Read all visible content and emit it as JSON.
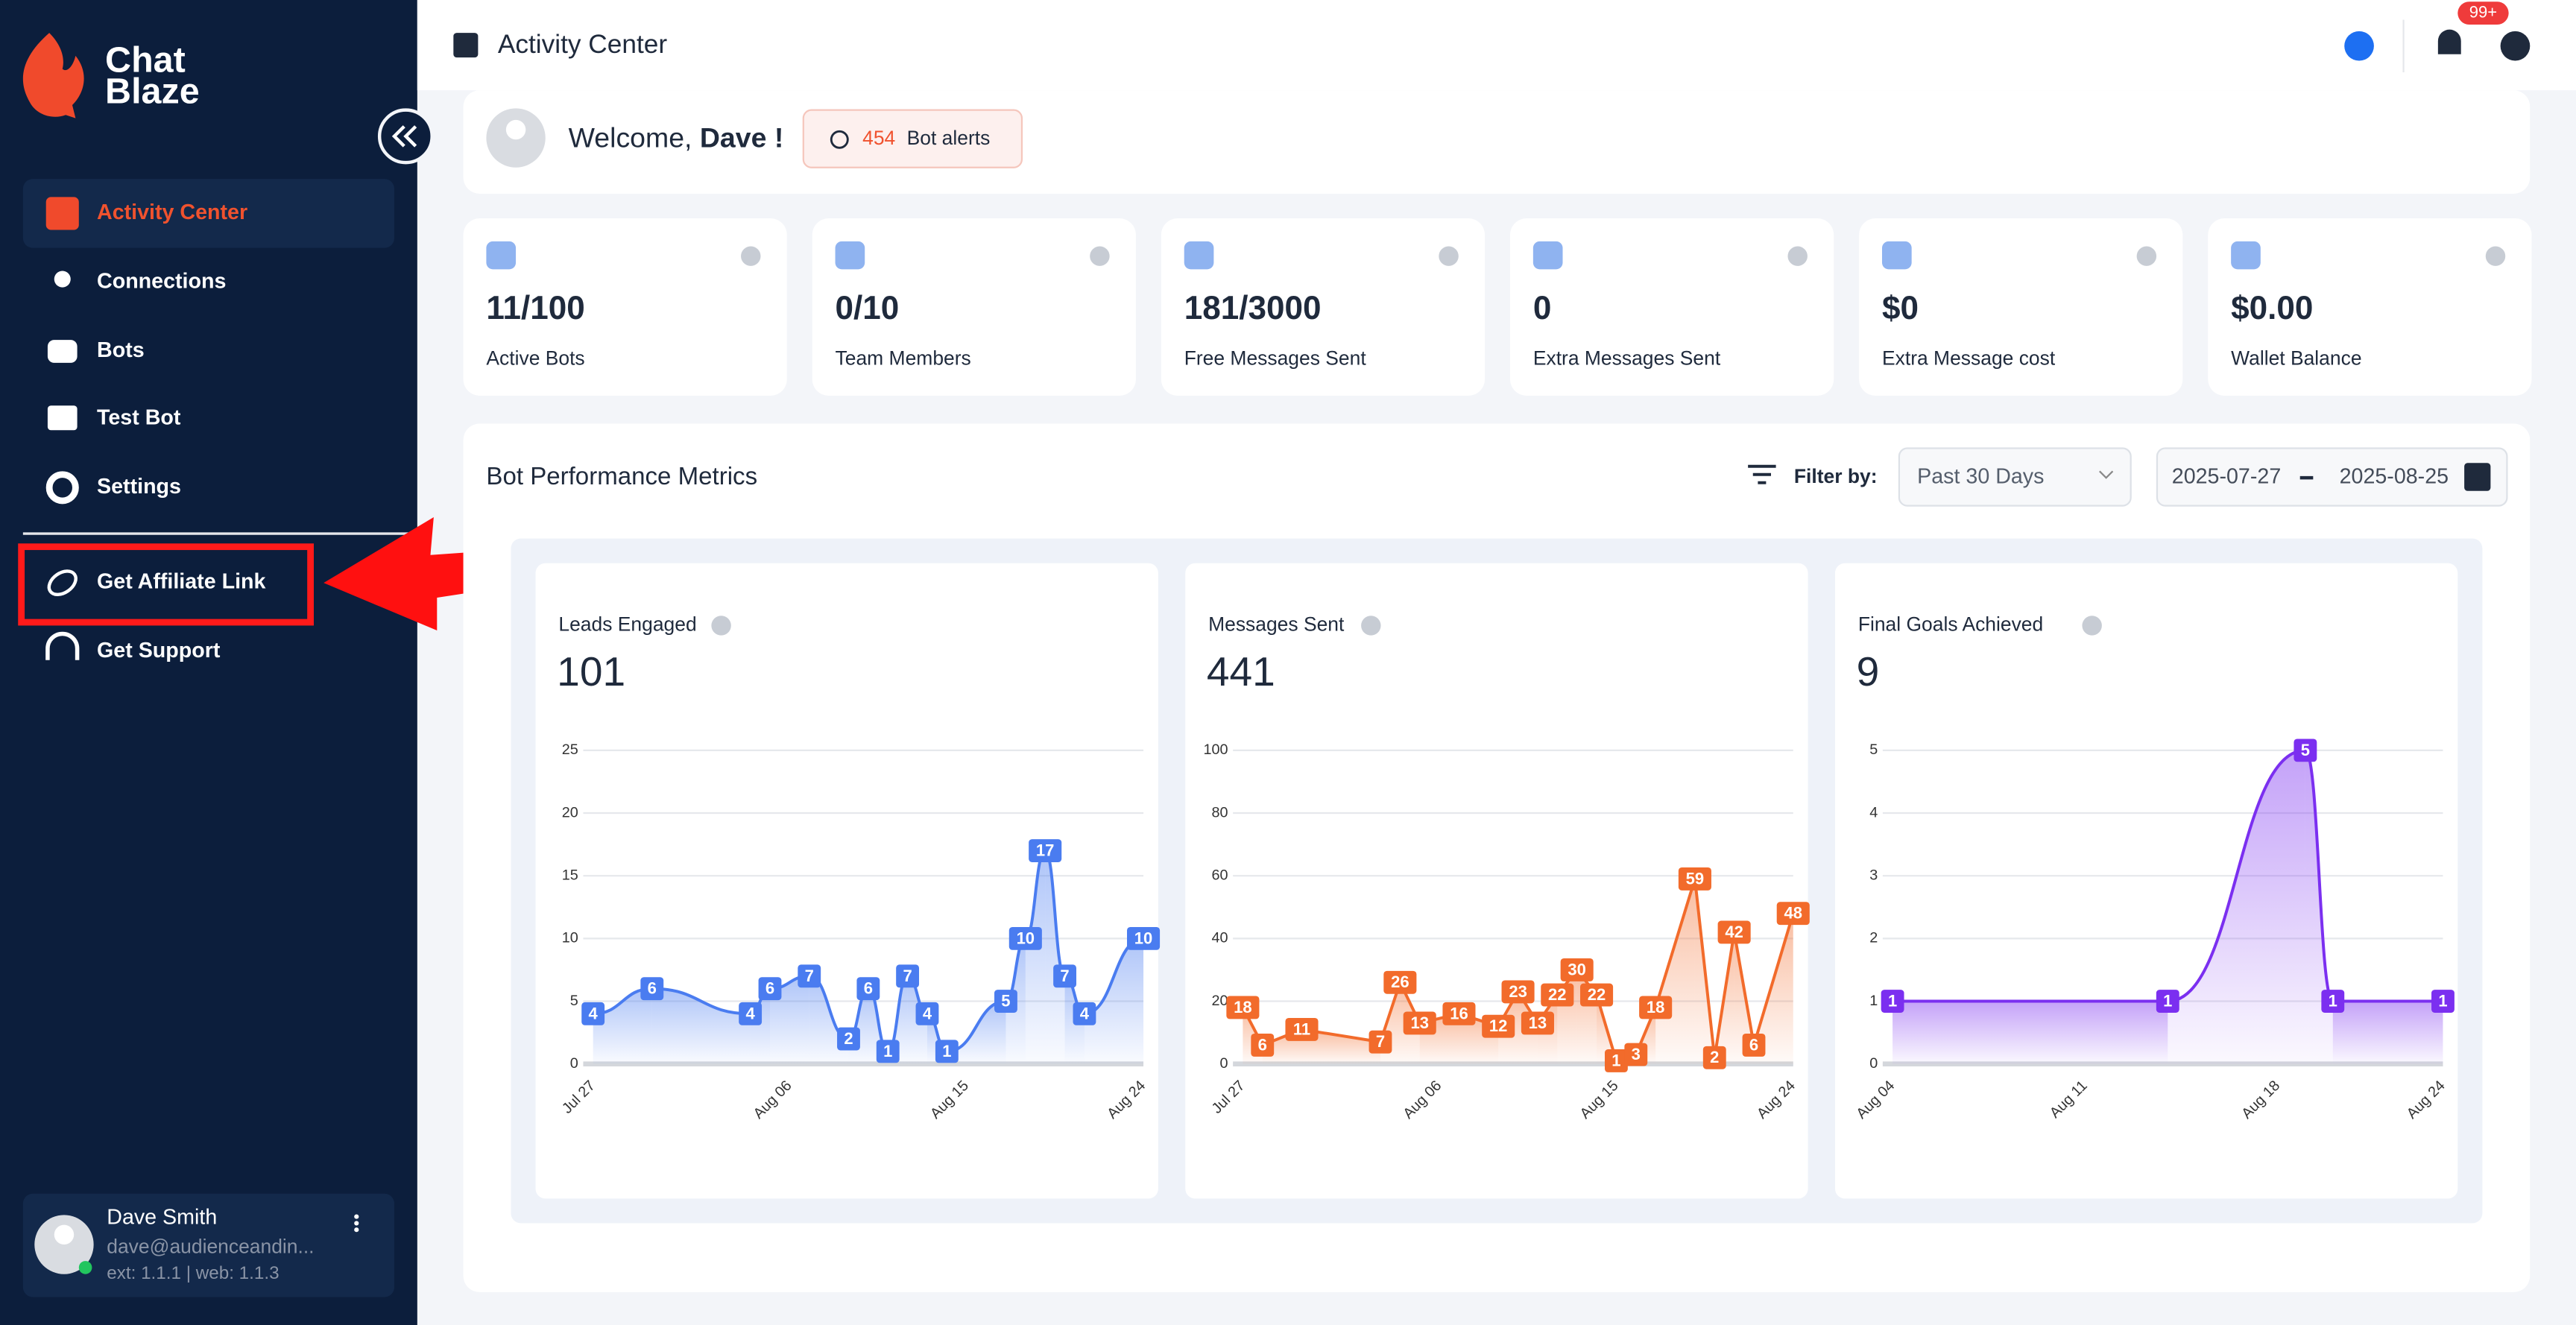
{
  "sidebar": {
    "brand": [
      "Chat",
      "Blaze"
    ],
    "nav": [
      "Activity Center",
      "Connections",
      "Bots",
      "Test Bot",
      "Settings",
      "Get Affiliate Link",
      "Get Support"
    ],
    "user": {
      "name": "Dave Smith",
      "email": "dave@audienceandin...",
      "version": "ext: 1.1.1 | web: 1.1.3"
    }
  },
  "header": {
    "title": "Activity Center",
    "notification_badge": "99+"
  },
  "welcome": {
    "greeting": "Welcome,",
    "name": "Dave !",
    "alert_count": 454,
    "alert_label": "Bot alerts"
  },
  "stats": [
    {
      "value": "11/100",
      "label": "Active Bots"
    },
    {
      "value": "0/10",
      "label": "Team Members"
    },
    {
      "value": "181/3000",
      "label": "Free Messages Sent"
    },
    {
      "value": "0",
      "label": "Extra Messages Sent"
    },
    {
      "value": "$0",
      "label": "Extra Message cost"
    },
    {
      "value": "$0.00",
      "label": "Wallet Balance"
    }
  ],
  "metrics": {
    "title": "Bot Performance Metrics",
    "filter_label": "Filter by:",
    "period": "Past 30 Days",
    "date_from": "2025-07-27",
    "date_to": "2025-08-25"
  },
  "chart_data": [
    {
      "type": "line",
      "title": "Leads Engaged",
      "total": 101,
      "color": "#4a7cf0",
      "smooth": true,
      "categories": [
        "Jul 27",
        null,
        null,
        null,
        null,
        null,
        null,
        null,
        null,
        null,
        "Aug 06",
        null,
        null,
        null,
        null,
        null,
        null,
        null,
        null,
        "Aug 15",
        null,
        null,
        null,
        null,
        null,
        null,
        null,
        null,
        "Aug 24"
      ],
      "values": [
        4,
        null,
        null,
        6,
        null,
        null,
        null,
        null,
        4,
        6,
        null,
        7,
        null,
        2,
        6,
        1,
        7,
        4,
        1,
        null,
        null,
        5,
        10,
        17,
        7,
        4,
        null,
        null,
        10
      ],
      "ylim": [
        0,
        25
      ],
      "yticks": [
        0,
        5,
        10,
        15,
        20,
        25
      ],
      "grid": true
    },
    {
      "type": "line",
      "title": "Messages Sent",
      "total": 441,
      "color": "#f26b2b",
      "smooth": false,
      "categories": [
        "Jul 27",
        null,
        null,
        null,
        null,
        null,
        null,
        null,
        null,
        null,
        "Aug 06",
        null,
        null,
        null,
        null,
        null,
        null,
        null,
        null,
        "Aug 15",
        null,
        null,
        null,
        null,
        null,
        null,
        null,
        null,
        "Aug 24"
      ],
      "values": [
        18,
        6,
        null,
        11,
        null,
        null,
        null,
        7,
        26,
        13,
        null,
        16,
        null,
        12,
        23,
        13,
        22,
        30,
        22,
        1,
        3,
        18,
        null,
        59,
        2,
        42,
        6,
        null,
        48
      ],
      "ylim": [
        0,
        100
      ],
      "yticks": [
        0,
        20,
        40,
        60,
        80,
        100
      ],
      "grid": true
    },
    {
      "type": "line",
      "title": "Final Goals Achieved",
      "total": 9,
      "color": "#7b2ff0",
      "smooth": true,
      "categories": [
        "Aug 04",
        null,
        null,
        null,
        null,
        null,
        null,
        "Aug 11",
        null,
        null,
        null,
        null,
        null,
        null,
        "Aug 18",
        null,
        null,
        null,
        null,
        null,
        "Aug 24"
      ],
      "values": [
        1,
        null,
        null,
        null,
        null,
        null,
        null,
        null,
        null,
        null,
        1,
        null,
        null,
        null,
        null,
        5,
        1,
        null,
        null,
        null,
        1
      ],
      "ylim": [
        0,
        5
      ],
      "yticks": [
        0,
        1,
        2,
        3,
        4,
        5
      ],
      "grid": true
    }
  ]
}
